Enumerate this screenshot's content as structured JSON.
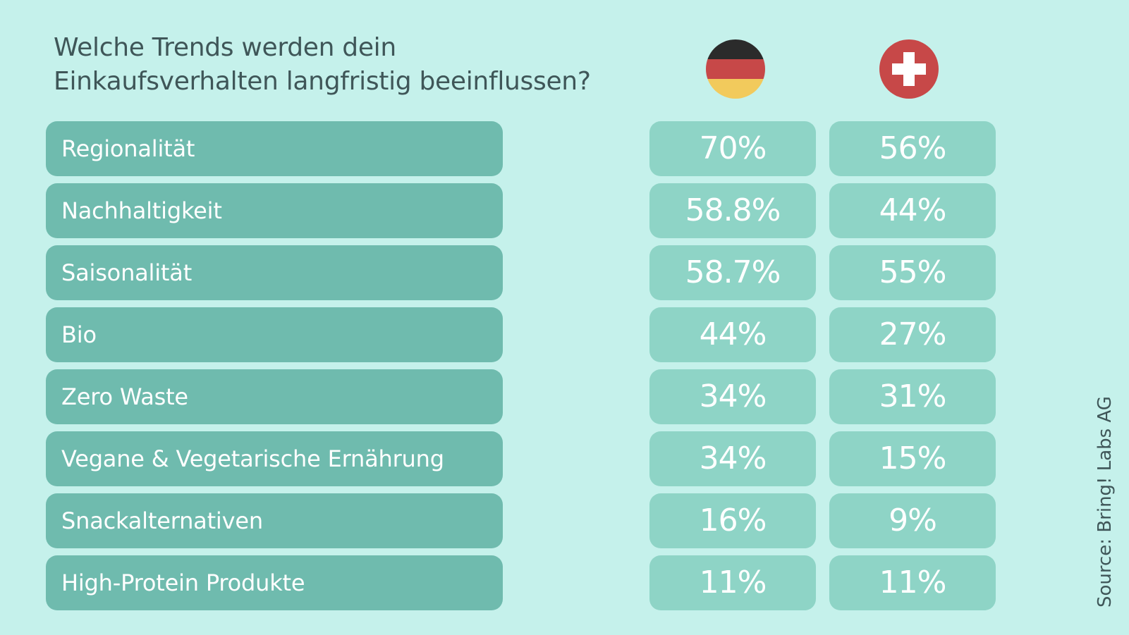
{
  "title": {
    "line1": "Welche Trends werden dein",
    "line2": "Einkaufsverhalten langfristig beeinflussen?"
  },
  "source": "Source: Bring! Labs AG",
  "colors": {
    "background": "#c5f1eb",
    "label_box": "#6fbbae",
    "value_box": "#8ed4c6",
    "title_text": "#3f5658",
    "de_black": "#2b2b2b",
    "de_red": "#c74848",
    "de_gold": "#f2ca5c",
    "ch_red": "#c74848"
  },
  "columns": [
    {
      "name": "Deutschland",
      "icon": "germany-flag-icon"
    },
    {
      "name": "Schweiz",
      "icon": "switzerland-flag-icon"
    }
  ],
  "chart_data": {
    "type": "table",
    "title": "Welche Trends werden dein Einkaufsverhalten langfristig beeinflussen?",
    "categories": [
      "Regionalität",
      "Nachhaltigkeit",
      "Saisonalität",
      "Bio",
      "Zero Waste",
      "Vegane & Vegetarische Ernährung",
      "Snackalternativen",
      "High-Protein Produkte"
    ],
    "series": [
      {
        "name": "Deutschland",
        "values": [
          "70%",
          "58.8%",
          "58.7%",
          "44%",
          "34%",
          "34%",
          "16%",
          "11%"
        ]
      },
      {
        "name": "Schweiz",
        "values": [
          "56%",
          "44%",
          "55%",
          "27%",
          "31%",
          "15%",
          "9%",
          "11%"
        ]
      }
    ],
    "source": "Source: Bring! Labs AG"
  }
}
